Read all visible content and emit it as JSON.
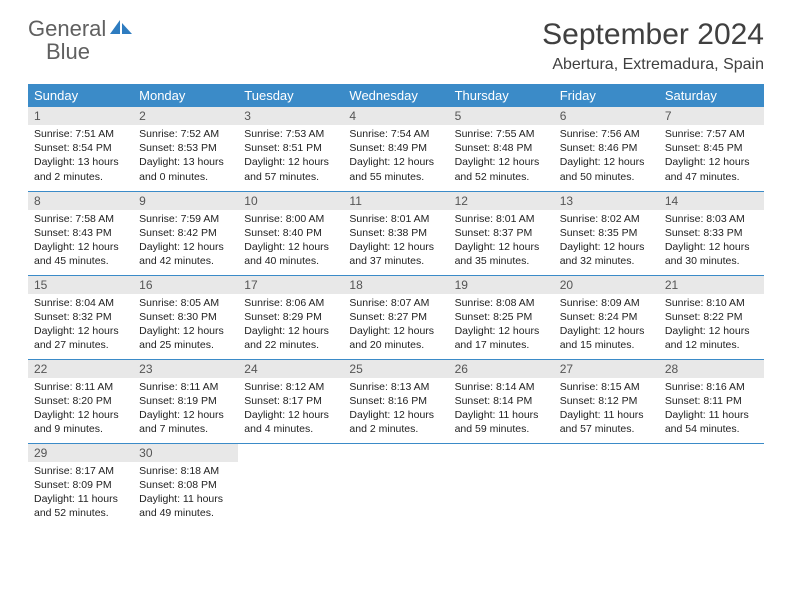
{
  "logo": {
    "text_general": "General",
    "text_blue": "Blue"
  },
  "title": "September 2024",
  "location": "Abertura, Extremadura, Spain",
  "colors": {
    "header_bg": "#3b8bc8",
    "header_fg": "#ffffff",
    "daynum_bg": "#e8e8e8",
    "rule": "#3b8bc8",
    "logo_gray": "#606060",
    "logo_blue": "#2e7cc0"
  },
  "weekdays": [
    "Sunday",
    "Monday",
    "Tuesday",
    "Wednesday",
    "Thursday",
    "Friday",
    "Saturday"
  ],
  "days": [
    {
      "n": "1",
      "sr": "7:51 AM",
      "ss": "8:54 PM",
      "dl": "13 hours and 2 minutes."
    },
    {
      "n": "2",
      "sr": "7:52 AM",
      "ss": "8:53 PM",
      "dl": "13 hours and 0 minutes."
    },
    {
      "n": "3",
      "sr": "7:53 AM",
      "ss": "8:51 PM",
      "dl": "12 hours and 57 minutes."
    },
    {
      "n": "4",
      "sr": "7:54 AM",
      "ss": "8:49 PM",
      "dl": "12 hours and 55 minutes."
    },
    {
      "n": "5",
      "sr": "7:55 AM",
      "ss": "8:48 PM",
      "dl": "12 hours and 52 minutes."
    },
    {
      "n": "6",
      "sr": "7:56 AM",
      "ss": "8:46 PM",
      "dl": "12 hours and 50 minutes."
    },
    {
      "n": "7",
      "sr": "7:57 AM",
      "ss": "8:45 PM",
      "dl": "12 hours and 47 minutes."
    },
    {
      "n": "8",
      "sr": "7:58 AM",
      "ss": "8:43 PM",
      "dl": "12 hours and 45 minutes."
    },
    {
      "n": "9",
      "sr": "7:59 AM",
      "ss": "8:42 PM",
      "dl": "12 hours and 42 minutes."
    },
    {
      "n": "10",
      "sr": "8:00 AM",
      "ss": "8:40 PM",
      "dl": "12 hours and 40 minutes."
    },
    {
      "n": "11",
      "sr": "8:01 AM",
      "ss": "8:38 PM",
      "dl": "12 hours and 37 minutes."
    },
    {
      "n": "12",
      "sr": "8:01 AM",
      "ss": "8:37 PM",
      "dl": "12 hours and 35 minutes."
    },
    {
      "n": "13",
      "sr": "8:02 AM",
      "ss": "8:35 PM",
      "dl": "12 hours and 32 minutes."
    },
    {
      "n": "14",
      "sr": "8:03 AM",
      "ss": "8:33 PM",
      "dl": "12 hours and 30 minutes."
    },
    {
      "n": "15",
      "sr": "8:04 AM",
      "ss": "8:32 PM",
      "dl": "12 hours and 27 minutes."
    },
    {
      "n": "16",
      "sr": "8:05 AM",
      "ss": "8:30 PM",
      "dl": "12 hours and 25 minutes."
    },
    {
      "n": "17",
      "sr": "8:06 AM",
      "ss": "8:29 PM",
      "dl": "12 hours and 22 minutes."
    },
    {
      "n": "18",
      "sr": "8:07 AM",
      "ss": "8:27 PM",
      "dl": "12 hours and 20 minutes."
    },
    {
      "n": "19",
      "sr": "8:08 AM",
      "ss": "8:25 PM",
      "dl": "12 hours and 17 minutes."
    },
    {
      "n": "20",
      "sr": "8:09 AM",
      "ss": "8:24 PM",
      "dl": "12 hours and 15 minutes."
    },
    {
      "n": "21",
      "sr": "8:10 AM",
      "ss": "8:22 PM",
      "dl": "12 hours and 12 minutes."
    },
    {
      "n": "22",
      "sr": "8:11 AM",
      "ss": "8:20 PM",
      "dl": "12 hours and 9 minutes."
    },
    {
      "n": "23",
      "sr": "8:11 AM",
      "ss": "8:19 PM",
      "dl": "12 hours and 7 minutes."
    },
    {
      "n": "24",
      "sr": "8:12 AM",
      "ss": "8:17 PM",
      "dl": "12 hours and 4 minutes."
    },
    {
      "n": "25",
      "sr": "8:13 AM",
      "ss": "8:16 PM",
      "dl": "12 hours and 2 minutes."
    },
    {
      "n": "26",
      "sr": "8:14 AM",
      "ss": "8:14 PM",
      "dl": "11 hours and 59 minutes."
    },
    {
      "n": "27",
      "sr": "8:15 AM",
      "ss": "8:12 PM",
      "dl": "11 hours and 57 minutes."
    },
    {
      "n": "28",
      "sr": "8:16 AM",
      "ss": "8:11 PM",
      "dl": "11 hours and 54 minutes."
    },
    {
      "n": "29",
      "sr": "8:17 AM",
      "ss": "8:09 PM",
      "dl": "11 hours and 52 minutes."
    },
    {
      "n": "30",
      "sr": "8:18 AM",
      "ss": "8:08 PM",
      "dl": "11 hours and 49 minutes."
    }
  ],
  "labels": {
    "sunrise": "Sunrise: ",
    "sunset": "Sunset: ",
    "daylight": "Daylight: "
  }
}
